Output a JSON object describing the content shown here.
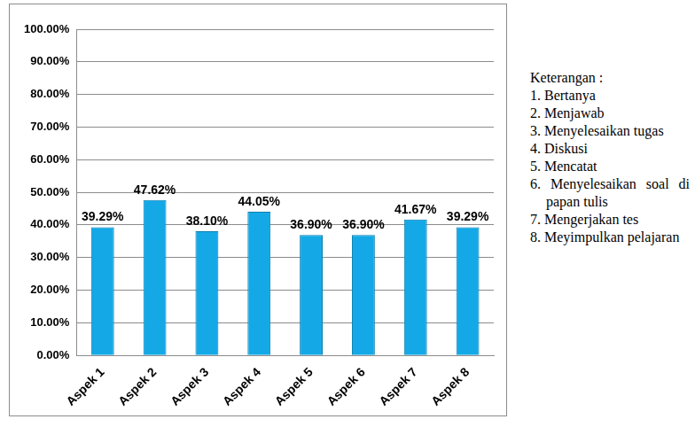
{
  "chart_data": {
    "type": "bar",
    "categories": [
      "Aspek 1",
      "Aspek 2",
      "Aspek 3",
      "Aspek 4",
      "Aspek 5",
      "Aspek 6",
      "Aspek 7",
      "Aspek 8"
    ],
    "values": [
      39.29,
      47.62,
      38.1,
      44.05,
      36.9,
      36.9,
      41.67,
      39.29
    ],
    "value_labels": [
      "39.29%",
      "47.62%",
      "38.10%",
      "44.05%",
      "36.90%",
      "36.90%",
      "41.67%",
      "39.29%"
    ],
    "color": "#14a9e6",
    "ylim": [
      0,
      100
    ],
    "yticks": [
      {
        "value": 0,
        "label": "0.00%"
      },
      {
        "value": 10,
        "label": "10.00%"
      },
      {
        "value": 20,
        "label": "20.00%"
      },
      {
        "value": 30,
        "label": "30.00%"
      },
      {
        "value": 40,
        "label": "40.00%"
      },
      {
        "value": 50,
        "label": "50.00%"
      },
      {
        "value": 60,
        "label": "60.00%"
      },
      {
        "value": 70,
        "label": "70.00%"
      },
      {
        "value": 80,
        "label": "80.00%"
      },
      {
        "value": 90,
        "label": "90.00%"
      },
      {
        "value": 100,
        "label": "100.00%"
      }
    ],
    "grid": true,
    "data_labels": true,
    "annotations": [
      "Keterangan :",
      "1. Bertanya",
      "2. Menjawab",
      "3. Menyelesaikan tugas",
      "4. Diskusi",
      "5. Mencatat",
      "6. Menyelesaikan soal di papan tulis",
      "7. Mengerjakan tes",
      "8. Meyimpulkan pelajaran"
    ]
  }
}
